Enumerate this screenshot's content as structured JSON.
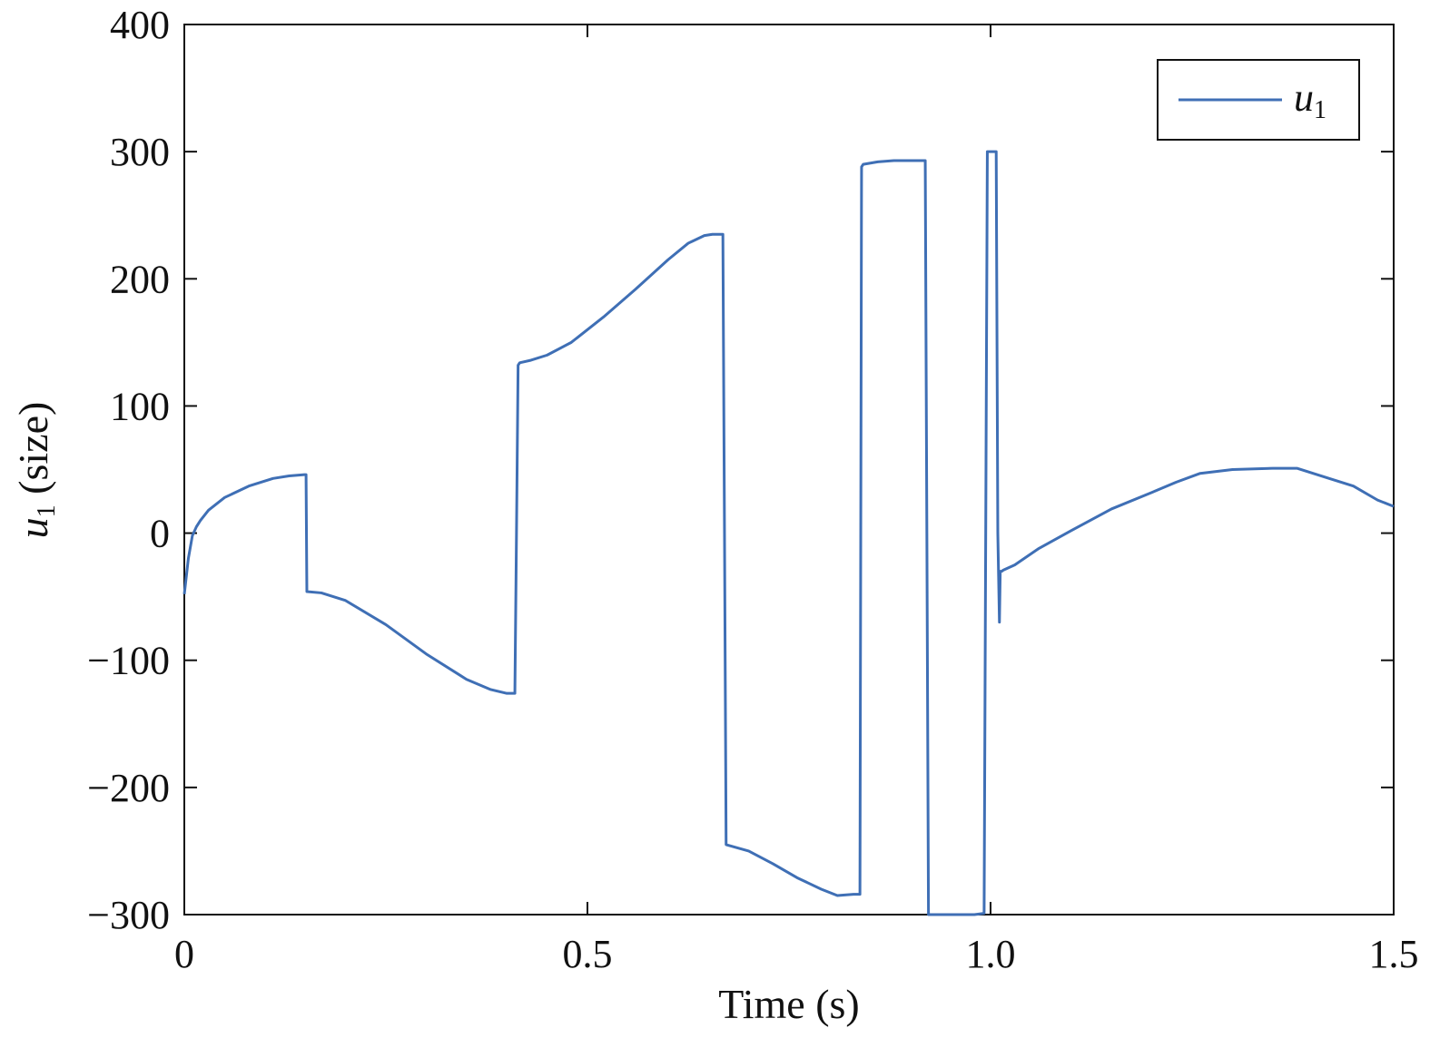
{
  "chart_data": {
    "type": "line",
    "xlabel": "Time (s)",
    "ylabel_var": "u",
    "ylabel_sub": "1",
    "ylabel_rest": " (size)",
    "xlim": [
      0,
      1.5
    ],
    "ylim": [
      -300,
      400
    ],
    "xticks": [
      0,
      0.5,
      1.0,
      1.5
    ],
    "xtick_labels": [
      "0",
      "0.5",
      "1.0",
      "1.5"
    ],
    "yticks": [
      -300,
      -200,
      -100,
      0,
      100,
      200,
      300,
      400
    ],
    "ytick_labels": [
      "−300",
      "−200",
      "−100",
      "0",
      "100",
      "200",
      "300",
      "400"
    ],
    "legend_position": "top-right",
    "grid": false,
    "series": [
      {
        "name_var": "u",
        "name_sub": "1",
        "color": "#3f6fb5",
        "x": [
          0,
          0.005,
          0.01,
          0.015,
          0.02,
          0.03,
          0.05,
          0.08,
          0.11,
          0.13,
          0.149,
          0.151,
          0.152,
          0.17,
          0.2,
          0.25,
          0.3,
          0.35,
          0.38,
          0.4,
          0.41,
          0.412,
          0.414,
          0.416,
          0.43,
          0.45,
          0.48,
          0.52,
          0.56,
          0.6,
          0.625,
          0.645,
          0.655,
          0.66,
          0.668,
          0.67,
          0.672,
          0.7,
          0.73,
          0.76,
          0.79,
          0.81,
          0.83,
          0.838,
          0.84,
          0.842,
          0.86,
          0.88,
          0.9,
          0.919,
          0.921,
          0.923,
          0.95,
          0.98,
          0.992,
          0.994,
          0.996,
          1.0,
          1.007,
          1.009,
          1.011,
          1.012,
          1.014,
          1.016,
          1.03,
          1.06,
          1.1,
          1.15,
          1.2,
          1.23,
          1.26,
          1.3,
          1.35,
          1.38,
          1.42,
          1.45,
          1.48,
          1.5
        ],
        "y": [
          -48,
          -20,
          -2,
          5,
          10,
          18,
          28,
          37,
          43,
          45,
          46,
          46,
          -46,
          -47,
          -53,
          -72,
          -95,
          -115,
          -123,
          -126,
          -126,
          0,
          132,
          134,
          136,
          140,
          150,
          170,
          192,
          215,
          228,
          234,
          235,
          235,
          235,
          0,
          -245,
          -250,
          -260,
          -271,
          -280,
          -285,
          -284,
          -284,
          288,
          290,
          292,
          293,
          293,
          293,
          0,
          -300,
          -300,
          -300,
          -299,
          0,
          300,
          300,
          300,
          0,
          -70,
          -30,
          -30,
          -29,
          -25,
          -12,
          2,
          19,
          32,
          40,
          47,
          50,
          51,
          51,
          43,
          37,
          26,
          21
        ]
      }
    ]
  }
}
